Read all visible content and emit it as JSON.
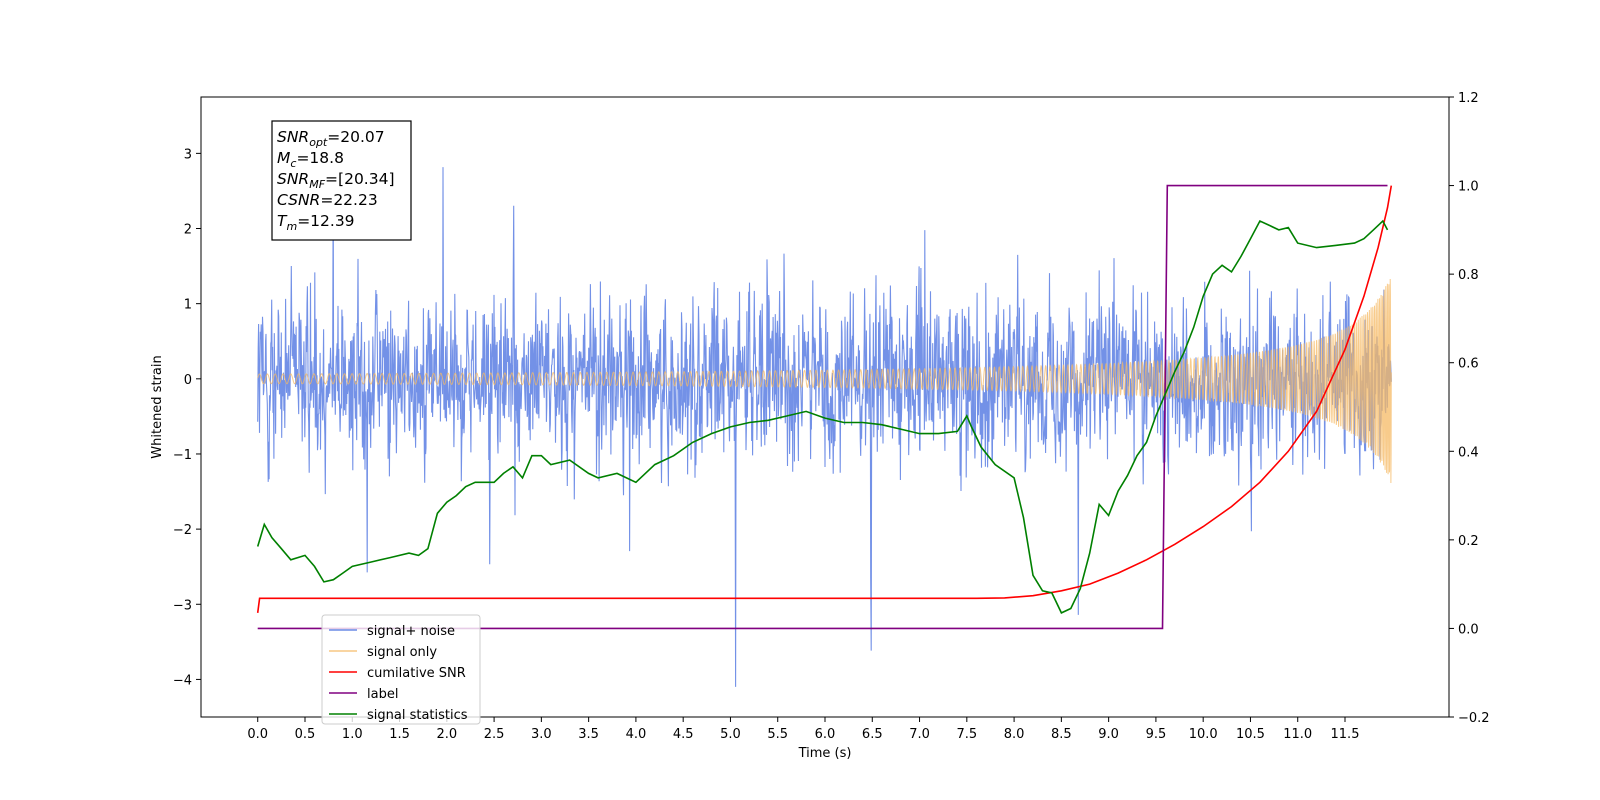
{
  "chart_data": {
    "type": "line",
    "xlabel": "Time (s)",
    "ylabel": "Whitened strain",
    "xlim": [
      -0.6,
      12.6
    ],
    "ylim": [
      -4.5,
      3.75
    ],
    "y2lim": [
      -0.2,
      1.2
    ],
    "xticks": [
      "0.0",
      "0.5",
      "1.0",
      "1.5",
      "2.0",
      "2.5",
      "3.0",
      "3.5",
      "4.0",
      "4.5",
      "5.0",
      "5.5",
      "6.0",
      "6.5",
      "7.0",
      "7.5",
      "8.0",
      "8.5",
      "9.0",
      "9.5",
      "10.0",
      "10.5",
      "11.0",
      "11.5"
    ],
    "yticks": [
      "−4",
      "−3",
      "−2",
      "−1",
      "0",
      "1",
      "2",
      "3"
    ],
    "y2ticks": [
      "−0.2",
      "0.0",
      "0.2",
      "0.4",
      "0.6",
      "0.8",
      "1.0",
      "1.2"
    ],
    "grid": false,
    "legend_position": "lower-left",
    "info_box": [
      {
        "base": "SNR",
        "sub": "opt",
        "value": "=20.07"
      },
      {
        "base": "M",
        "sub": "c",
        "value": "=18.8"
      },
      {
        "base": "SNR",
        "sub": "MF",
        "value": "=[20.34]"
      },
      {
        "base": "CSNR",
        "sub": "",
        "value": "=22.23"
      },
      {
        "base": "T",
        "sub": "m",
        "value": "=12.39"
      }
    ],
    "series": [
      {
        "name": "signal+ noise",
        "axis": "left",
        "color": "#6b8be6",
        "description_values": {
          "t_start": 0.0,
          "t_end": 11.99,
          "noise_std": 0.75,
          "peak_max": 3.35,
          "peak_min": -4.1
        }
      },
      {
        "name": "signal only",
        "axis": "left",
        "color": "#f5b964",
        "chirp": {
          "t_start": 0.0,
          "t_end": 11.99,
          "amp_end": 1.4,
          "merger_time": 12.39
        }
      },
      {
        "name": "cumilative SNR",
        "axis": "right",
        "color": "#ff0000",
        "x": [
          0.0,
          0.02,
          7.6,
          7.9,
          8.2,
          8.5,
          8.8,
          9.1,
          9.4,
          9.7,
          10.0,
          10.3,
          10.6,
          10.9,
          11.2,
          11.5,
          11.7,
          11.85,
          11.95,
          11.99
        ],
        "y": [
          0.035,
          0.068,
          0.068,
          0.069,
          0.074,
          0.085,
          0.1,
          0.125,
          0.155,
          0.19,
          0.23,
          0.275,
          0.33,
          0.4,
          0.49,
          0.63,
          0.75,
          0.86,
          0.95,
          1.0
        ]
      },
      {
        "name": "label",
        "axis": "right",
        "color": "#800080",
        "x": [
          0.0,
          9.57,
          9.62,
          11.95
        ],
        "y": [
          0.0,
          0.0,
          1.0,
          1.0
        ]
      },
      {
        "name": "signal statistics",
        "axis": "right",
        "color": "#008000",
        "x": [
          0.0,
          0.07,
          0.15,
          0.25,
          0.35,
          0.5,
          0.6,
          0.7,
          0.8,
          0.9,
          1.0,
          1.2,
          1.4,
          1.6,
          1.7,
          1.8,
          1.9,
          2.0,
          2.1,
          2.2,
          2.3,
          2.5,
          2.6,
          2.7,
          2.8,
          2.9,
          3.0,
          3.1,
          3.3,
          3.5,
          3.6,
          3.8,
          4.0,
          4.2,
          4.4,
          4.6,
          4.8,
          5.0,
          5.2,
          5.4,
          5.6,
          5.8,
          6.0,
          6.2,
          6.4,
          6.6,
          6.8,
          7.0,
          7.2,
          7.4,
          7.5,
          7.55,
          7.65,
          7.8,
          8.0,
          8.1,
          8.2,
          8.3,
          8.4,
          8.5,
          8.6,
          8.7,
          8.8,
          8.9,
          9.0,
          9.1,
          9.2,
          9.3,
          9.4,
          9.5,
          9.6,
          9.7,
          9.8,
          9.9,
          10.0,
          10.1,
          10.2,
          10.3,
          10.4,
          10.5,
          10.6,
          10.7,
          10.8,
          10.9,
          11.0,
          11.2,
          11.4,
          11.6,
          11.7,
          11.8,
          11.9,
          11.95
        ],
        "y": [
          0.185,
          0.235,
          0.205,
          0.18,
          0.155,
          0.165,
          0.14,
          0.105,
          0.11,
          0.125,
          0.14,
          0.15,
          0.16,
          0.17,
          0.165,
          0.18,
          0.26,
          0.285,
          0.3,
          0.32,
          0.33,
          0.33,
          0.35,
          0.365,
          0.34,
          0.39,
          0.39,
          0.37,
          0.38,
          0.35,
          0.34,
          0.35,
          0.33,
          0.37,
          0.39,
          0.42,
          0.44,
          0.455,
          0.465,
          0.47,
          0.48,
          0.49,
          0.475,
          0.465,
          0.465,
          0.46,
          0.45,
          0.44,
          0.44,
          0.445,
          0.48,
          0.455,
          0.41,
          0.37,
          0.34,
          0.25,
          0.12,
          0.085,
          0.08,
          0.035,
          0.045,
          0.09,
          0.17,
          0.28,
          0.255,
          0.31,
          0.345,
          0.39,
          0.42,
          0.48,
          0.53,
          0.58,
          0.625,
          0.68,
          0.75,
          0.8,
          0.82,
          0.805,
          0.84,
          0.88,
          0.92,
          0.91,
          0.9,
          0.905,
          0.87,
          0.86,
          0.865,
          0.87,
          0.88,
          0.9,
          0.92,
          0.9
        ]
      }
    ]
  }
}
